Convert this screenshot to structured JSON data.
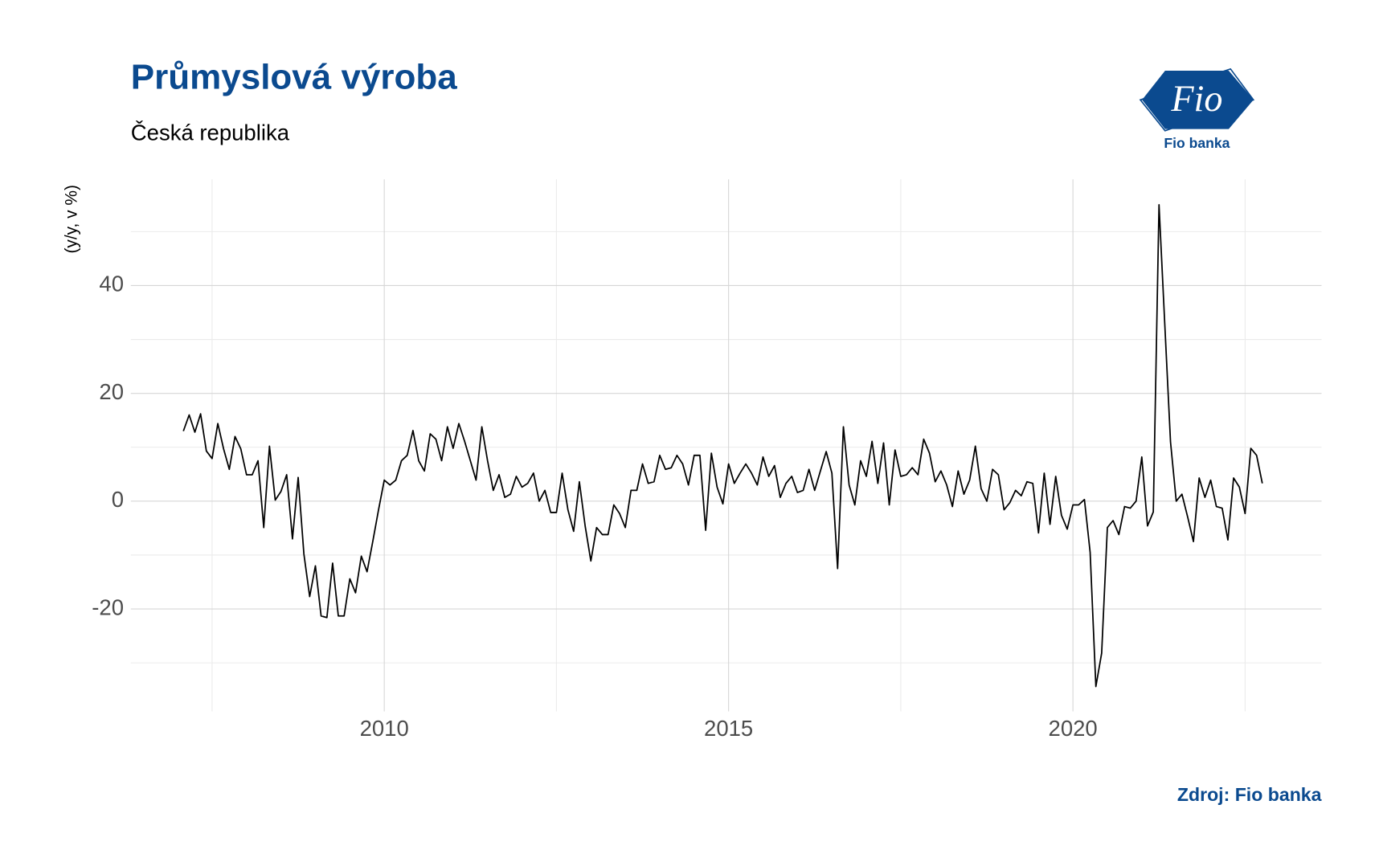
{
  "chart_data": {
    "type": "line",
    "title": "Průmyslová výroba",
    "subtitle": "Česká republika",
    "y_label": "(y/y, v %)",
    "source": "Zdroj: Fio banka",
    "logo": {
      "text": "Fio",
      "caption": "Fio banka"
    },
    "xlim": [
      2006.32,
      2023.61
    ],
    "xticks": [
      2010,
      2015,
      2020
    ],
    "ylim": [
      -39,
      59.7
    ],
    "yticks": [
      -20,
      0,
      20,
      40
    ],
    "grid": true,
    "x": [
      2007.083,
      2007.167,
      2007.25,
      2007.333,
      2007.417,
      2007.5,
      2007.583,
      2007.667,
      2007.75,
      2007.833,
      2007.917,
      2008.0,
      2008.083,
      2008.167,
      2008.25,
      2008.333,
      2008.417,
      2008.5,
      2008.583,
      2008.667,
      2008.75,
      2008.833,
      2008.917,
      2009.0,
      2009.083,
      2009.167,
      2009.25,
      2009.333,
      2009.417,
      2009.5,
      2009.583,
      2009.667,
      2009.75,
      2009.833,
      2009.917,
      2010.0,
      2010.083,
      2010.167,
      2010.25,
      2010.333,
      2010.417,
      2010.5,
      2010.583,
      2010.667,
      2010.75,
      2010.833,
      2010.917,
      2011.0,
      2011.083,
      2011.167,
      2011.25,
      2011.333,
      2011.417,
      2011.5,
      2011.583,
      2011.667,
      2011.75,
      2011.833,
      2011.917,
      2012.0,
      2012.083,
      2012.167,
      2012.25,
      2012.333,
      2012.417,
      2012.5,
      2012.583,
      2012.667,
      2012.75,
      2012.833,
      2012.917,
      2013.0,
      2013.083,
      2013.167,
      2013.25,
      2013.333,
      2013.417,
      2013.5,
      2013.583,
      2013.667,
      2013.75,
      2013.833,
      2013.917,
      2014.0,
      2014.083,
      2014.167,
      2014.25,
      2014.333,
      2014.417,
      2014.5,
      2014.583,
      2014.667,
      2014.75,
      2014.833,
      2014.917,
      2015.0,
      2015.083,
      2015.167,
      2015.25,
      2015.333,
      2015.417,
      2015.5,
      2015.583,
      2015.667,
      2015.75,
      2015.833,
      2015.917,
      2016.0,
      2016.083,
      2016.167,
      2016.25,
      2016.333,
      2016.417,
      2016.5,
      2016.583,
      2016.667,
      2016.75,
      2016.833,
      2016.917,
      2017.0,
      2017.083,
      2017.167,
      2017.25,
      2017.333,
      2017.417,
      2017.5,
      2017.583,
      2017.667,
      2017.75,
      2017.833,
      2017.917,
      2018.0,
      2018.083,
      2018.167,
      2018.25,
      2018.333,
      2018.417,
      2018.5,
      2018.583,
      2018.667,
      2018.75,
      2018.833,
      2018.917,
      2019.0,
      2019.083,
      2019.167,
      2019.25,
      2019.333,
      2019.417,
      2019.5,
      2019.583,
      2019.667,
      2019.75,
      2019.833,
      2019.917,
      2020.0,
      2020.083,
      2020.167,
      2020.25,
      2020.333,
      2020.417,
      2020.5,
      2020.583,
      2020.667,
      2020.75,
      2020.833,
      2020.917,
      2021.0,
      2021.083,
      2021.167,
      2021.25,
      2021.333,
      2021.417,
      2021.5,
      2021.583,
      2021.667,
      2021.75,
      2021.833,
      2021.917,
      2022.0,
      2022.083,
      2022.167,
      2022.25,
      2022.333,
      2022.417,
      2022.5,
      2022.583,
      2022.667,
      2022.75
    ],
    "series": [
      {
        "color": "#000000",
        "values": [
          13,
          16,
          12.8,
          16.2,
          9.3,
          7.9,
          14.4,
          9.7,
          5.9,
          12,
          9.7,
          4.9,
          4.9,
          7.5,
          -4.9,
          10.2,
          0.2,
          1.8,
          4.9,
          -7,
          4.4,
          -9.8,
          -17.7,
          -12,
          -21.3,
          -21.6,
          -11.5,
          -21.3,
          -21.3,
          -14.4,
          -17,
          -10.2,
          -13.1,
          -7.5,
          -1.6,
          3.9,
          3,
          3.9,
          7.5,
          8.5,
          13.1,
          7.5,
          5.6,
          12.5,
          11.5,
          7.5,
          13.8,
          9.8,
          14.4,
          11.1,
          7.5,
          3.9,
          13.8,
          7.5,
          2,
          4.9,
          0.7,
          1.3,
          4.6,
          2.6,
          3.3,
          5.2,
          0,
          2,
          -2.1,
          -2.1,
          5.2,
          -1.6,
          -5.6,
          3.6,
          -4.6,
          -11.1,
          -4.9,
          -6.2,
          -6.2,
          -0.7,
          -2.3,
          -4.9,
          2,
          2,
          6.9,
          3.3,
          3.6,
          8.5,
          5.9,
          6.2,
          8.5,
          6.9,
          3,
          8.5,
          8.5,
          -5.4,
          8.9,
          2.6,
          -0.5,
          6.9,
          3.3,
          5.2,
          6.9,
          5.2,
          3,
          8.2,
          4.6,
          6.6,
          0.7,
          3.3,
          4.6,
          1.6,
          2,
          5.9,
          2,
          5.6,
          9.2,
          5.2,
          -12.5,
          13.8,
          3,
          -0.7,
          7.5,
          4.6,
          11.1,
          3.3,
          10.8,
          -0.7,
          9.5,
          4.6,
          4.9,
          6.2,
          4.9,
          11.5,
          8.9,
          3.6,
          5.6,
          3,
          -1,
          5.6,
          1.3,
          3.9,
          10.2,
          2.3,
          0,
          5.9,
          4.9,
          -1.6,
          -0.3,
          2,
          1,
          3.6,
          3.3,
          -5.9,
          5.2,
          -4.3,
          4.6,
          -2.6,
          -5.2,
          -0.7,
          -0.7,
          0.3,
          -9.5,
          -34.4,
          -28.2,
          -4.9,
          -3.6,
          -6.2,
          -1,
          -1.3,
          0,
          8.2,
          -4.6,
          -2,
          55,
          33,
          11,
          0,
          1.3,
          -3,
          -7.5,
          4.3,
          0.7,
          3.9,
          -1,
          -1.3,
          -7.2,
          4.3,
          2.6,
          -2.3,
          9.8,
          8.5,
          3.3
        ]
      }
    ]
  }
}
